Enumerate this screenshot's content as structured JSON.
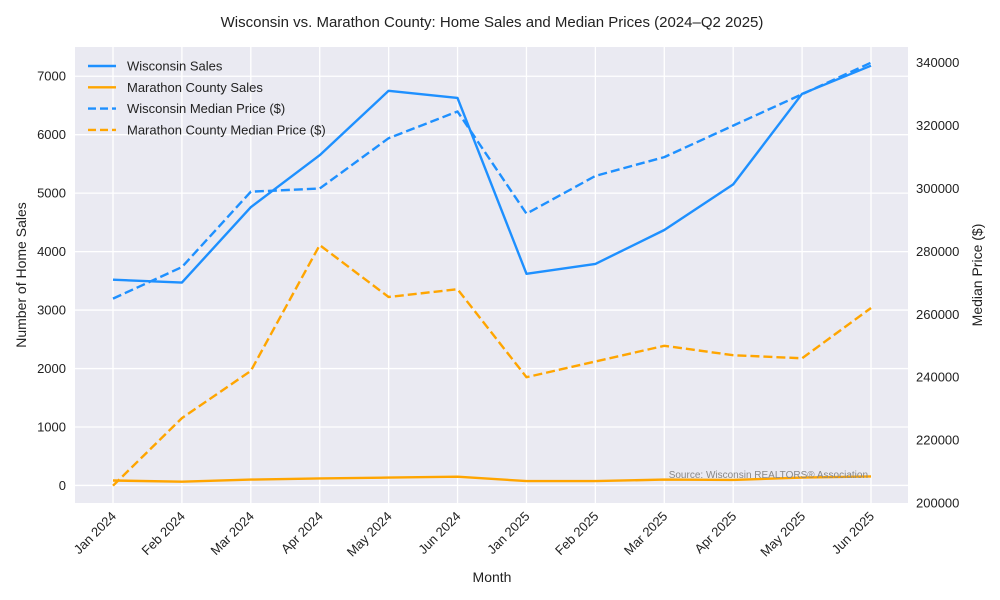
{
  "chart_data": {
    "type": "line",
    "title": "Wisconsin vs. Marathon County: Home Sales and Median Prices (2024–Q2 2025)",
    "xlabel": "Month",
    "ylabel_left": "Number of Home Sales",
    "ylabel_right": "Median Price ($)",
    "categories": [
      "Jan 2024",
      "Feb 2024",
      "Mar 2024",
      "Apr 2024",
      "May 2024",
      "Jun 2024",
      "Jan 2025",
      "Feb 2025",
      "Mar 2025",
      "Apr 2025",
      "May 2025",
      "Jun 2025"
    ],
    "ylim_left": [
      -300,
      7500
    ],
    "ylim_right": [
      200000,
      345000
    ],
    "yticks_left": [
      0,
      1000,
      2000,
      3000,
      4000,
      5000,
      6000,
      7000
    ],
    "yticks_right": [
      200000,
      220000,
      240000,
      260000,
      280000,
      300000,
      320000,
      340000
    ],
    "grid": true,
    "legend_position": "top-left",
    "series": [
      {
        "name": "Wisconsin Sales",
        "axis": "left",
        "style": "solid",
        "color": "#1E90FF",
        "values": [
          3520,
          3470,
          4760,
          5650,
          6750,
          6630,
          3620,
          3790,
          4370,
          5150,
          6700,
          7180
        ]
      },
      {
        "name": "Marathon County Sales",
        "axis": "left",
        "style": "solid",
        "color": "#FFA500",
        "values": [
          85,
          65,
          100,
          120,
          135,
          150,
          75,
          75,
          100,
          95,
          135,
          155
        ]
      },
      {
        "name": "Wisconsin Median Price ($)",
        "axis": "right",
        "style": "dashed",
        "color": "#1E90FF",
        "values": [
          265000,
          275000,
          299000,
          300000,
          316000,
          324500,
          292000,
          304000,
          310000,
          320000,
          330000,
          340000
        ]
      },
      {
        "name": "Marathon County Median Price ($)",
        "axis": "right",
        "style": "dashed",
        "color": "#FFA500",
        "values": [
          205500,
          227000,
          242000,
          282000,
          265500,
          268000,
          240000,
          245000,
          250000,
          247000,
          246000,
          262000
        ]
      }
    ],
    "annotation": "Source: Wisconsin REALTORS® Association"
  }
}
